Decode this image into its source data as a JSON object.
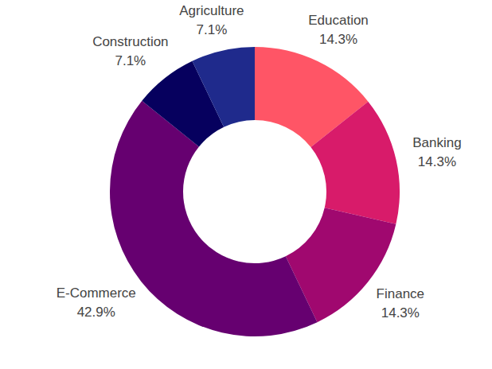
{
  "chart_data": {
    "type": "donut",
    "categories": [
      "Education",
      "Banking",
      "Finance",
      "E-Commerce",
      "Construction",
      "Agriculture"
    ],
    "values": [
      14.3,
      14.3,
      14.3,
      42.9,
      7.1,
      7.1
    ],
    "value_labels": [
      "14.3%",
      "14.3%",
      "14.3%",
      "42.9%",
      "7.1%",
      "7.1%"
    ],
    "colors": [
      "#ff5566",
      "#d81b6a",
      "#a0086f",
      "#660070",
      "#06005e",
      "#1f2a8c"
    ],
    "data_labels": true
  }
}
